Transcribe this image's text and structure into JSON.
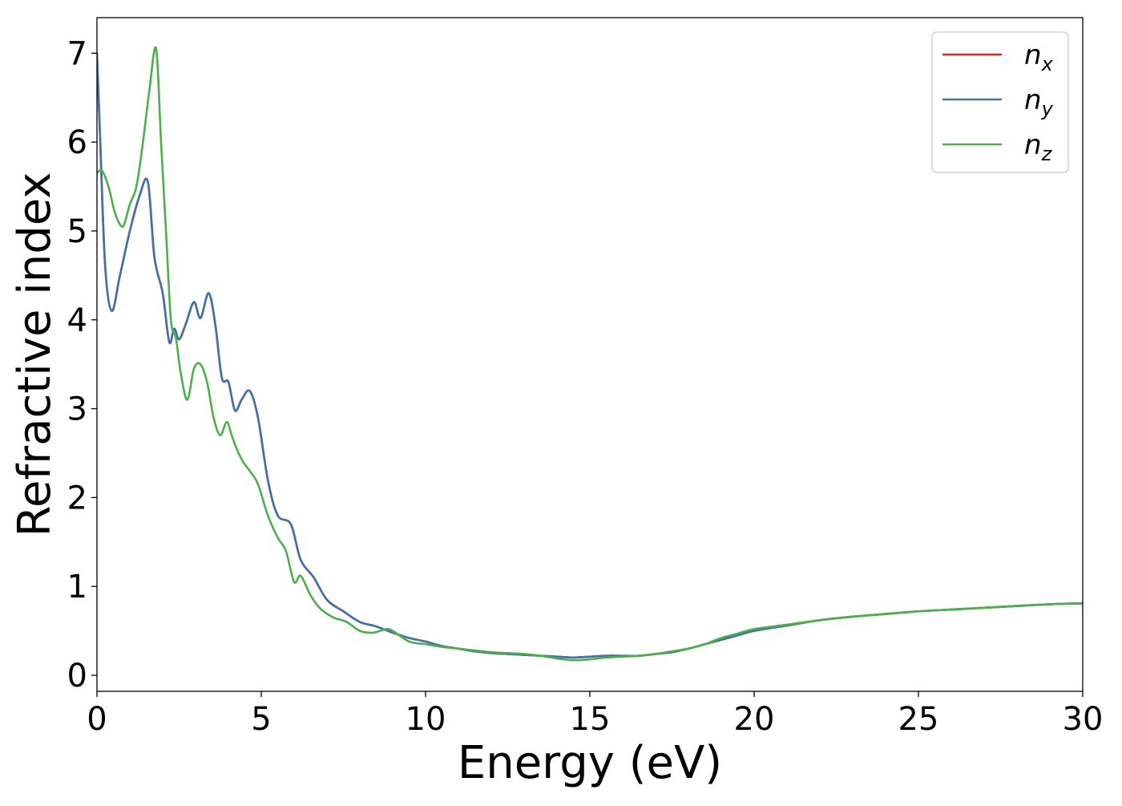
{
  "chart_data": {
    "type": "line",
    "xlabel": "Energy (eV)",
    "ylabel": "Refractive index",
    "xlim": [
      0,
      30
    ],
    "ylim": [
      -0.18,
      7.4
    ],
    "xticks": [
      0,
      5,
      10,
      15,
      20,
      25,
      30
    ],
    "yticks": [
      0,
      1,
      2,
      3,
      4,
      5,
      6,
      7
    ],
    "grid": false,
    "legend_position": "top-right",
    "series": [
      {
        "name": "n",
        "subscript": "x",
        "color": "#d62728",
        "x": [
          0,
          0.1,
          0.25,
          0.45,
          0.7,
          1.0,
          1.3,
          1.55,
          1.75,
          2.0,
          2.2,
          2.35,
          2.5,
          2.7,
          2.95,
          3.15,
          3.4,
          3.6,
          3.8,
          4.0,
          4.2,
          4.4,
          4.65,
          4.9,
          5.2,
          5.5,
          5.9,
          6.2,
          6.6,
          7.0,
          7.5,
          8.0,
          8.5,
          9.0,
          9.5,
          10.0,
          10.5,
          11.0,
          11.5,
          12.0,
          12.5,
          13.0,
          13.5,
          14.0,
          14.5,
          15.0,
          15.5,
          16.0,
          16.5,
          17.0,
          17.5,
          18.0,
          18.5,
          19.0,
          19.5,
          20.0,
          21.0,
          22.0,
          23.0,
          24.0,
          25.0,
          26.0,
          27.0,
          28.0,
          29.0,
          30.0
        ],
        "y": [
          7.0,
          6.0,
          4.6,
          4.1,
          4.5,
          5.0,
          5.4,
          5.55,
          4.7,
          4.3,
          3.75,
          3.9,
          3.78,
          3.95,
          4.2,
          4.02,
          4.3,
          3.95,
          3.35,
          3.3,
          2.98,
          3.1,
          3.2,
          2.9,
          2.2,
          1.8,
          1.7,
          1.3,
          1.1,
          0.85,
          0.72,
          0.6,
          0.55,
          0.48,
          0.42,
          0.38,
          0.33,
          0.3,
          0.27,
          0.25,
          0.24,
          0.23,
          0.22,
          0.21,
          0.2,
          0.21,
          0.22,
          0.22,
          0.22,
          0.24,
          0.26,
          0.3,
          0.35,
          0.4,
          0.45,
          0.5,
          0.56,
          0.62,
          0.66,
          0.69,
          0.72,
          0.74,
          0.76,
          0.78,
          0.8,
          0.81
        ]
      },
      {
        "name": "n",
        "subscript": "y",
        "color": "#3f72ad",
        "x": [
          0,
          0.1,
          0.25,
          0.45,
          0.7,
          1.0,
          1.3,
          1.55,
          1.75,
          2.0,
          2.2,
          2.35,
          2.5,
          2.7,
          2.95,
          3.15,
          3.4,
          3.6,
          3.8,
          4.0,
          4.2,
          4.4,
          4.65,
          4.9,
          5.2,
          5.5,
          5.9,
          6.2,
          6.6,
          7.0,
          7.5,
          8.0,
          8.5,
          9.0,
          9.5,
          10.0,
          10.5,
          11.0,
          11.5,
          12.0,
          12.5,
          13.0,
          13.5,
          14.0,
          14.5,
          15.0,
          15.5,
          16.0,
          16.5,
          17.0,
          17.5,
          18.0,
          18.5,
          19.0,
          19.5,
          20.0,
          21.0,
          22.0,
          23.0,
          24.0,
          25.0,
          26.0,
          27.0,
          28.0,
          29.0,
          30.0
        ],
        "y": [
          7.0,
          6.0,
          4.6,
          4.1,
          4.5,
          5.0,
          5.4,
          5.55,
          4.7,
          4.3,
          3.75,
          3.9,
          3.78,
          3.95,
          4.2,
          4.02,
          4.3,
          3.95,
          3.35,
          3.3,
          2.98,
          3.1,
          3.2,
          2.9,
          2.2,
          1.8,
          1.7,
          1.3,
          1.1,
          0.85,
          0.72,
          0.6,
          0.55,
          0.48,
          0.42,
          0.38,
          0.33,
          0.3,
          0.27,
          0.25,
          0.24,
          0.23,
          0.22,
          0.21,
          0.2,
          0.21,
          0.22,
          0.22,
          0.22,
          0.24,
          0.26,
          0.3,
          0.35,
          0.4,
          0.45,
          0.5,
          0.56,
          0.62,
          0.66,
          0.69,
          0.72,
          0.74,
          0.76,
          0.78,
          0.8,
          0.81
        ]
      },
      {
        "name": "n",
        "subscript": "z",
        "color": "#4daf4a",
        "x": [
          0,
          0.15,
          0.35,
          0.55,
          0.75,
          0.85,
          1.0,
          1.2,
          1.4,
          1.6,
          1.8,
          1.95,
          2.1,
          2.25,
          2.4,
          2.55,
          2.75,
          2.95,
          3.15,
          3.35,
          3.55,
          3.75,
          3.95,
          4.1,
          4.25,
          4.45,
          4.65,
          4.9,
          5.2,
          5.5,
          5.75,
          6.0,
          6.2,
          6.5,
          6.8,
          7.2,
          7.6,
          8.0,
          8.4,
          8.8,
          9.0,
          9.5,
          10.0,
          10.5,
          11.0,
          11.5,
          12.0,
          12.5,
          13.0,
          13.5,
          14.0,
          14.5,
          15.0,
          15.5,
          16.0,
          16.5,
          17.0,
          17.5,
          18.0,
          18.5,
          19.0,
          19.5,
          20.0,
          21.0,
          22.0,
          23.0,
          24.0,
          25.0,
          26.0,
          27.0,
          28.0,
          29.0,
          30.0
        ],
        "y": [
          5.65,
          5.68,
          5.5,
          5.2,
          5.05,
          5.1,
          5.3,
          5.5,
          6.0,
          6.6,
          7.05,
          6.0,
          5.0,
          4.0,
          3.8,
          3.4,
          3.1,
          3.45,
          3.5,
          3.3,
          2.9,
          2.7,
          2.85,
          2.7,
          2.55,
          2.4,
          2.3,
          2.15,
          1.8,
          1.55,
          1.4,
          1.05,
          1.12,
          0.9,
          0.75,
          0.65,
          0.6,
          0.5,
          0.48,
          0.52,
          0.5,
          0.38,
          0.35,
          0.32,
          0.3,
          0.28,
          0.26,
          0.25,
          0.24,
          0.22,
          0.19,
          0.17,
          0.18,
          0.2,
          0.21,
          0.22,
          0.24,
          0.27,
          0.3,
          0.35,
          0.42,
          0.47,
          0.52,
          0.57,
          0.62,
          0.66,
          0.69,
          0.72,
          0.74,
          0.76,
          0.78,
          0.8,
          0.81
        ]
      }
    ]
  }
}
